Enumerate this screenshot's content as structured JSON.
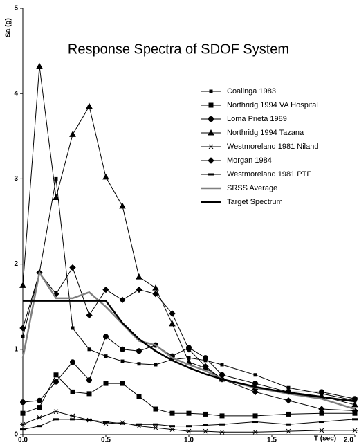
{
  "chart_data": {
    "type": "line",
    "title": "Response Spectra of SDOF System",
    "y_label": "Sa (g)",
    "x_label": "T (sec)",
    "x": [
      0,
      0.1,
      0.2,
      0.3,
      0.4,
      0.5,
      0.6,
      0.7,
      0.8,
      0.9,
      1.0,
      1.1,
      1.2,
      1.4,
      1.6,
      1.8,
      2.0
    ],
    "xlim": [
      0,
      2
    ],
    "ylim": [
      0,
      5
    ],
    "xticks": [
      {
        "value": 0,
        "label": "0.0"
      },
      0.5,
      {
        "value": 1,
        "label": "1.0"
      },
      1.5,
      {
        "value": 2,
        "label": "2.0"
      }
    ],
    "yticks": [
      0,
      1,
      2,
      3,
      4,
      5
    ],
    "grid": false,
    "legend": "upper right",
    "series": [
      {
        "name": "Coalinga 1983",
        "color": "#000000",
        "marker": "square-small",
        "values": [
          1.15,
          1.9,
          3.0,
          1.25,
          1.0,
          0.92,
          0.86,
          0.83,
          0.82,
          0.88,
          0.9,
          0.87,
          0.82,
          0.7,
          0.55,
          0.48,
          0.4
        ]
      },
      {
        "name": "Northridg 1994 VA Hospital",
        "color": "#000000",
        "marker": "square",
        "values": [
          0.25,
          0.32,
          0.7,
          0.5,
          0.48,
          0.6,
          0.6,
          0.45,
          0.3,
          0.25,
          0.25,
          0.24,
          0.22,
          0.22,
          0.24,
          0.25,
          0.25
        ]
      },
      {
        "name": "Loma Prieta 1989",
        "color": "#000000",
        "marker": "circle",
        "values": [
          0.38,
          0.4,
          0.62,
          0.85,
          0.64,
          1.15,
          1.0,
          0.98,
          1.05,
          0.92,
          1.02,
          0.9,
          0.7,
          0.6,
          0.5,
          0.5,
          0.42
        ]
      },
      {
        "name": "Northridg 1994 Tazana",
        "color": "#000000",
        "marker": "triangle",
        "values": [
          1.75,
          4.32,
          2.78,
          3.52,
          3.85,
          3.02,
          2.68,
          1.85,
          1.72,
          1.3,
          0.85,
          0.78,
          0.65,
          0.55,
          0.5,
          0.45,
          0.35
        ]
      },
      {
        "name": "Westmoreland 1981 Niland",
        "color": "#000000",
        "marker": "star",
        "values": [
          0.12,
          0.2,
          0.27,
          0.22,
          0.17,
          0.13,
          0.14,
          0.1,
          0.08,
          0.06,
          0.04,
          0.04,
          0.03,
          0.03,
          0.04,
          0.05,
          0.05
        ]
      },
      {
        "name": "Morgan 1984",
        "color": "#000000",
        "marker": "diamond",
        "values": [
          1.25,
          1.9,
          1.65,
          1.96,
          1.4,
          1.7,
          1.58,
          1.7,
          1.65,
          1.42,
          1.0,
          0.8,
          0.65,
          0.5,
          0.4,
          0.3,
          0.28
        ]
      },
      {
        "name": "Westmoreland 1981 PTF",
        "color": "#000000",
        "marker": "dash",
        "values": [
          0.06,
          0.1,
          0.18,
          0.18,
          0.17,
          0.15,
          0.13,
          0.12,
          0.12,
          0.1,
          0.1,
          0.11,
          0.12,
          0.15,
          0.12,
          0.15,
          0.18
        ]
      },
      {
        "name": "SRSS Average",
        "color": "#808080",
        "values": [
          0.9,
          1.9,
          1.6,
          1.6,
          1.67,
          1.5,
          1.3,
          1.1,
          1.05,
          0.9,
          0.82,
          0.75,
          0.65,
          0.55,
          0.48,
          0.42,
          0.3
        ]
      },
      {
        "name": "Target Spectrum",
        "color": "#000000",
        "values": [
          1.57,
          1.57,
          1.57,
          1.57,
          1.57,
          1.57,
          1.31,
          1.12,
          0.98,
          0.87,
          0.785,
          0.71,
          0.65,
          0.56,
          0.49,
          0.44,
          0.39
        ]
      }
    ]
  }
}
